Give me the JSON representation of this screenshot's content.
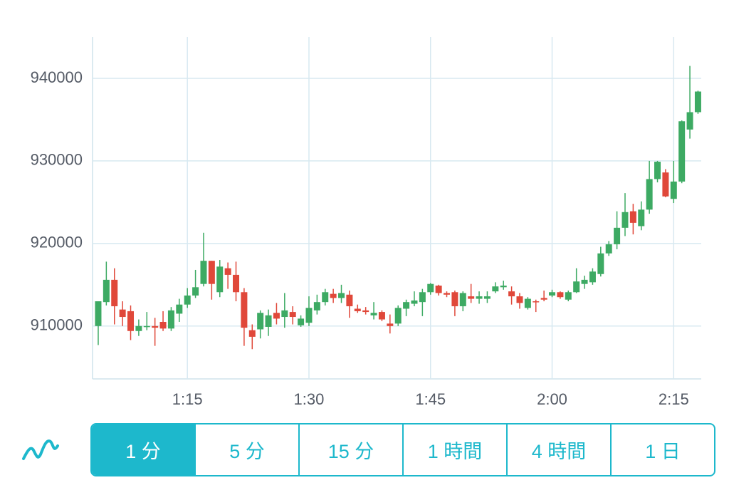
{
  "chart_data": {
    "type": "candlestick",
    "x": [
      64,
      65,
      66,
      67,
      68,
      69,
      70,
      71,
      72,
      73,
      74,
      75,
      76,
      77,
      78,
      79,
      80,
      81,
      82,
      83,
      84,
      85,
      86,
      87,
      88,
      89,
      90,
      91,
      92,
      93,
      94,
      95,
      96,
      97,
      98,
      99,
      100,
      101,
      102,
      103,
      104,
      105,
      106,
      107,
      108,
      109,
      110,
      111,
      112,
      113,
      114,
      115,
      116,
      117,
      118,
      119,
      120,
      121,
      122,
      123,
      124,
      125,
      126,
      127,
      128,
      129,
      130,
      131,
      132,
      133,
      134,
      135,
      136,
      137,
      138
    ],
    "open": [
      910000,
      912900,
      915600,
      912000,
      911800,
      909400,
      909900,
      910000,
      910500,
      909700,
      911500,
      912600,
      913700,
      915100,
      917900,
      914100,
      917000,
      916200,
      914100,
      909500,
      909600,
      909900,
      911600,
      911100,
      911700,
      910100,
      910400,
      911900,
      912900,
      913900,
      913400,
      913800,
      912100,
      911900,
      911300,
      911700,
      910300,
      910300,
      912100,
      912700,
      912900,
      914100,
      914900,
      914000,
      914100,
      912400,
      913600,
      913300,
      913300,
      914200,
      914700,
      914200,
      913600,
      912200,
      913000,
      913400,
      913700,
      914100,
      913200,
      914100,
      915100,
      915300,
      916300,
      918800,
      919900,
      921900,
      923900,
      922100,
      924100,
      927800,
      928600,
      925400,
      927500,
      933800,
      935900
    ],
    "high": [
      913000,
      917800,
      917000,
      913000,
      912500,
      910800,
      911700,
      911000,
      911800,
      912300,
      913300,
      914600,
      916800,
      921300,
      917900,
      918000,
      917700,
      917800,
      914600,
      910200,
      911900,
      912000,
      912800,
      914000,
      912400,
      911300,
      913600,
      913800,
      914500,
      914500,
      915000,
      914300,
      912600,
      912300,
      912900,
      911900,
      911400,
      912500,
      913200,
      914200,
      914500,
      915200,
      915000,
      914200,
      914300,
      914200,
      915100,
      914200,
      914200,
      915300,
      915500,
      914800,
      914000,
      913500,
      913200,
      914300,
      914400,
      914200,
      914300,
      917000,
      916100,
      917000,
      919600,
      920300,
      923900,
      926100,
      924800,
      925100,
      930000,
      930000,
      929000,
      930000,
      934900,
      941500,
      938500
    ],
    "low": [
      907700,
      912500,
      910200,
      910000,
      908300,
      908800,
      909500,
      907600,
      909400,
      909400,
      910500,
      912200,
      913400,
      914800,
      913200,
      913500,
      914500,
      913000,
      907600,
      907200,
      908500,
      908800,
      910200,
      909800,
      910200,
      909900,
      910000,
      911400,
      912500,
      912800,
      912800,
      911000,
      911600,
      911400,
      910800,
      910600,
      909100,
      910000,
      911200,
      912400,
      911200,
      913800,
      913700,
      913500,
      911200,
      911800,
      912800,
      912700,
      912800,
      914000,
      914400,
      912600,
      912100,
      912000,
      911700,
      913000,
      913500,
      913300,
      913000,
      914000,
      914500,
      915000,
      916000,
      918500,
      919300,
      920900,
      921100,
      921600,
      923600,
      927400,
      925600,
      924900,
      927300,
      932700,
      935700
    ],
    "close": [
      913000,
      915600,
      912400,
      911100,
      909400,
      910000,
      910000,
      909800,
      909700,
      911900,
      912600,
      913700,
      914700,
      917900,
      915100,
      917200,
      916200,
      914100,
      909800,
      908700,
      911600,
      911300,
      910900,
      911900,
      911100,
      910900,
      912200,
      912900,
      914100,
      913400,
      914000,
      912400,
      911800,
      911700,
      911600,
      910800,
      910000,
      912200,
      912900,
      913100,
      914100,
      915100,
      914000,
      913800,
      912400,
      914000,
      913300,
      913600,
      913600,
      914800,
      914900,
      913600,
      912800,
      913300,
      912900,
      913200,
      914100,
      913500,
      914100,
      915400,
      915600,
      916600,
      918800,
      919900,
      921900,
      923800,
      922500,
      924100,
      927800,
      929900,
      925700,
      927500,
      934800,
      935900,
      938400
    ],
    "up_color": "#3daa63",
    "down_color": "#e0483a",
    "xlim": [
      63.3,
      138.4
    ],
    "xticks": [
      {
        "value": 75,
        "label": "1:15"
      },
      {
        "value": 90,
        "label": "1:30"
      },
      {
        "value": 105,
        "label": "1:45"
      },
      {
        "value": 120,
        "label": "2:00"
      },
      {
        "value": 135,
        "label": "2:15"
      }
    ],
    "ylim": [
      903600,
      945000
    ],
    "yticks": [
      910000,
      920000,
      930000,
      940000
    ],
    "grid": true
  },
  "timeframes": [
    "1 分",
    "5 分",
    "15 分",
    "1 時間",
    "4 時間",
    "1 日"
  ],
  "selected_timeframe": 0
}
